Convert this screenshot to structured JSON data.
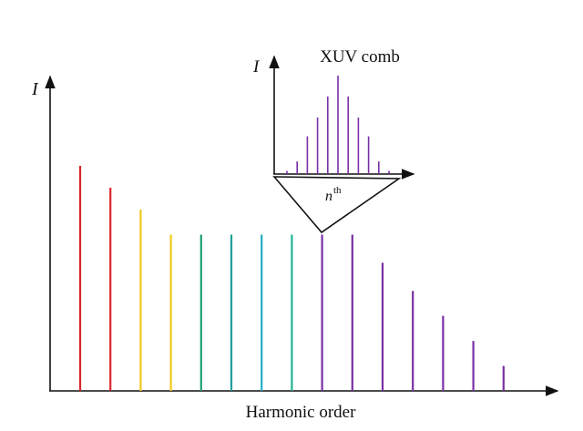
{
  "chart_data": [
    {
      "type": "bar",
      "y_label": "I",
      "x_label": "Harmonic order",
      "categories": [
        null,
        null,
        null,
        null,
        null,
        null,
        null,
        null,
        null,
        null,
        null,
        null,
        null,
        null,
        null
      ],
      "values": [
        72,
        65,
        58,
        50,
        50,
        50,
        50,
        50,
        50,
        50,
        41,
        32,
        24,
        16,
        8
      ],
      "colors": [
        "#d8262b",
        "#d8262b",
        "#f2c81c",
        "#f2c81c",
        "#1d9f6e",
        "#1f9e9a",
        "#22aec4",
        "#23b393",
        "#7a2fa6",
        "#7a2fa6",
        "#7a2fa6",
        "#7a2fa6",
        "#7a2fa6",
        "#7a2fa6",
        "#7a2fa6"
      ],
      "ylim": [
        0,
        100
      ]
    },
    {
      "type": "bar",
      "title": "XUV comb",
      "y_label": "I",
      "x_label": "n",
      "x_label_sup": "th",
      "categories": [
        null,
        null,
        null,
        null,
        null,
        null,
        null,
        null,
        null,
        null,
        null
      ],
      "values": [
        3,
        12,
        36,
        54,
        74,
        94,
        74,
        54,
        36,
        12,
        3
      ],
      "color": "#7a2fa6",
      "ylim": [
        0,
        100
      ]
    }
  ]
}
